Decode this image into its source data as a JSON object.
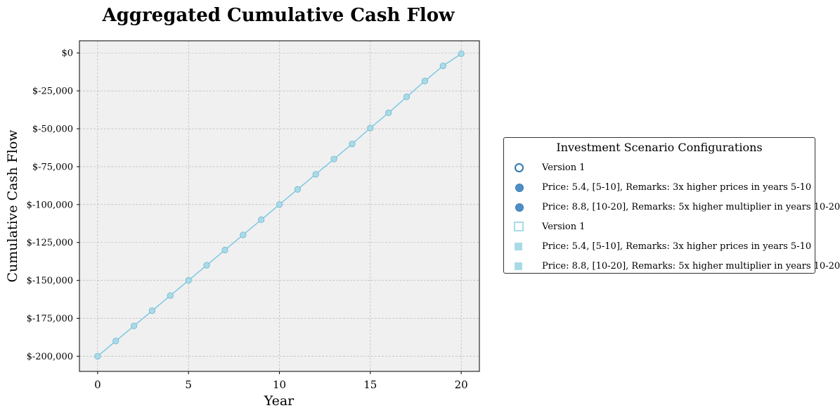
{
  "chart_data": {
    "type": "line",
    "title": "Aggregated Cumulative Cash Flow",
    "xlabel": "Year",
    "ylabel": "Cumulative Cash Flow",
    "xlim": [
      -1,
      21
    ],
    "ylim": [
      -210000,
      8000
    ],
    "xticks": [
      0,
      5,
      10,
      15,
      20
    ],
    "xtick_labels": [
      "0",
      "5",
      "10",
      "15",
      "20"
    ],
    "yticks": [
      0,
      -25000,
      -50000,
      -75000,
      -100000,
      -125000,
      -150000,
      -175000,
      -200000
    ],
    "ytick_labels": [
      "$0",
      "$-25,000",
      "$-50,000",
      "$-75,000",
      "$-100,000",
      "$-125,000",
      "$-150,000",
      "$-175,000",
      "$-200,000"
    ],
    "grid": true,
    "legend_placement": "outside-right",
    "series": [
      {
        "color": "#7ec8e3",
        "marker_color": "#a9dbe7",
        "x": [
          0,
          1,
          2,
          3,
          4,
          5,
          6,
          7,
          8,
          9,
          10,
          11,
          12,
          13,
          14,
          15,
          16,
          17,
          18,
          19,
          20
        ],
        "y": [
          -200000,
          -190000,
          -180000,
          -170000,
          -160000,
          -150000,
          -140000,
          -130000,
          -120000,
          -110000,
          -100000,
          -90000,
          -80000,
          -70000,
          -60000,
          -49500,
          -39500,
          -29000,
          -18500,
          -8500,
          -500
        ]
      }
    ]
  },
  "legend": {
    "title": "Investment Scenario Configurations",
    "items": [
      {
        "label": "Version 1",
        "marker": "ring"
      },
      {
        "label": "Price: 5.4, [5-10], Remarks: 3x higher prices in years 5-10",
        "marker": "dot"
      },
      {
        "label": "Price: 8.8, [10-20], Remarks: 5x higher multiplier in years 10-20",
        "marker": "dot"
      },
      {
        "label": "Version 1",
        "marker": "square-open"
      },
      {
        "label": "Price: 5.4, [5-10], Remarks: 3x higher prices in years 5-10",
        "marker": "square"
      },
      {
        "label": "Price: 8.8, [10-20], Remarks: 5x higher multiplier in years 10-20",
        "marker": "square"
      }
    ]
  },
  "colors": {
    "plot_background": "#f0f0f0",
    "grid": "#b0b0b0",
    "line": "#7ec8e3",
    "marker_fill": "#a9dbe7",
    "marker_edge": "#6fb7cf"
  }
}
